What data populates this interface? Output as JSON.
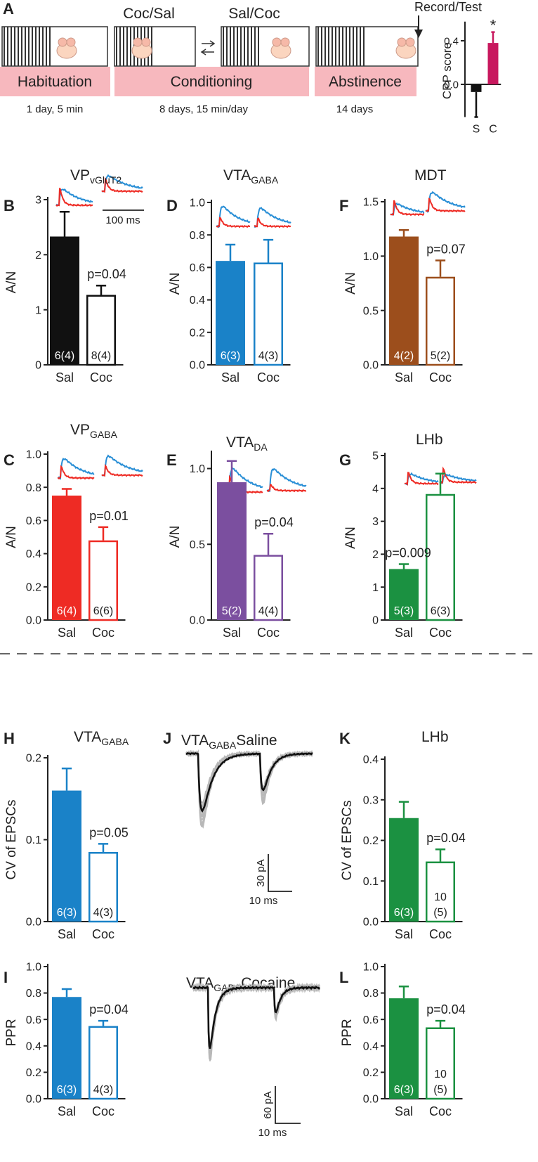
{
  "schematic": {
    "letter": "A",
    "phases": [
      "Habituation",
      "Conditioning",
      "Abstinence"
    ],
    "durations": [
      "1 day, 5 min",
      "8 days, 15 min/day",
      "14 days"
    ],
    "pairings": [
      "Coc/Sal",
      "Sal/Coc"
    ],
    "record": "Record/Test"
  },
  "traces_panel": {
    "letter": "J",
    "saline_title": [
      "VTA",
      "GABA",
      "Saline"
    ],
    "cocaine_title": [
      "VTA",
      "GABA",
      "Cocaine"
    ],
    "saline_scale": [
      "30 pA",
      "10 ms"
    ],
    "cocaine_scale": [
      "60 pA",
      "10 ms"
    ],
    "inset_scale": "100 ms"
  },
  "chart_data": [
    {
      "type": "bar",
      "ylabel": "CPP score",
      "categories": [
        "S",
        "C"
      ],
      "values": [
        -0.07,
        0.38
      ],
      "errors": [
        0.23,
        0.1
      ],
      "colors": [
        "#111111",
        "#c8185e"
      ],
      "open": [
        false,
        false
      ],
      "annotation": "*",
      "ylim": [
        -0.3,
        0.55
      ],
      "yticks": [
        {
          "value": 0,
          "label": "0.0"
        },
        0.4
      ]
    },
    {
      "type": "bar",
      "panel": "B",
      "title": "VP",
      "title_sub": "vGluT2",
      "ylabel": "A/N",
      "categories": [
        "Sal",
        "Coc"
      ],
      "values": [
        2.33,
        1.27
      ],
      "errors": [
        0.45,
        0.17
      ],
      "colors": [
        "#111111",
        "#111111"
      ],
      "open": [
        false,
        true
      ],
      "n_labels": [
        [
          "6(4)"
        ],
        [
          "8(4)"
        ]
      ],
      "p_label": "p=0.04",
      "ylim": [
        0,
        3
      ],
      "yticks": [
        0,
        1,
        2,
        3
      ]
    },
    {
      "type": "bar",
      "panel": "D",
      "title": "VTA",
      "title_sub": "GABA",
      "ylabel": "A/N",
      "categories": [
        "Sal",
        "Coc"
      ],
      "values": [
        0.64,
        0.63
      ],
      "errors": [
        0.1,
        0.14
      ],
      "colors": [
        "#1a82c8",
        "#1a82c8"
      ],
      "open": [
        false,
        true
      ],
      "n_labels": [
        [
          "6(3)"
        ],
        [
          "4(3)"
        ]
      ],
      "ylim": [
        0,
        1.0
      ],
      "yticks": [
        {
          "value": 0,
          "label": "0.0"
        },
        0.2,
        0.4,
        0.6,
        0.8,
        {
          "value": 1,
          "label": "1.0"
        }
      ]
    },
    {
      "type": "bar",
      "panel": "F",
      "title": "MDT",
      "ylabel": "A/N",
      "categories": [
        "Sal",
        "Coc"
      ],
      "values": [
        1.18,
        0.81
      ],
      "errors": [
        0.06,
        0.15
      ],
      "colors": [
        "#9c4e1c",
        "#9c4e1c"
      ],
      "open": [
        false,
        true
      ],
      "n_labels": [
        [
          "4(2)"
        ],
        [
          "5(2)"
        ]
      ],
      "p_label": "p=0.07",
      "ylim": [
        0,
        1.5
      ],
      "yticks": [
        {
          "value": 0,
          "label": "0.0"
        },
        0.5,
        {
          "value": 1,
          "label": "1.0"
        },
        1.5
      ]
    },
    {
      "type": "bar",
      "panel": "C",
      "title": "VP",
      "title_sub": "GABA",
      "ylabel": "A/N",
      "categories": [
        "Sal",
        "Coc"
      ],
      "values": [
        0.75,
        0.48
      ],
      "errors": [
        0.04,
        0.08
      ],
      "colors": [
        "#ee2b24",
        "#ee2b24"
      ],
      "open": [
        false,
        true
      ],
      "n_labels": [
        [
          "6(4)"
        ],
        [
          "6(6)"
        ]
      ],
      "p_label": "p=0.01",
      "ylim": [
        0,
        1.0
      ],
      "yticks": [
        {
          "value": 0,
          "label": "0.0"
        },
        0.2,
        0.4,
        0.6,
        0.8,
        {
          "value": 1,
          "label": "1.0"
        }
      ]
    },
    {
      "type": "bar",
      "panel": "E",
      "title": "VTA",
      "title_sub": "DA",
      "ylabel": "A/N",
      "categories": [
        "Sal",
        "Coc"
      ],
      "values": [
        0.91,
        0.43
      ],
      "errors": [
        0.14,
        0.14
      ],
      "colors": [
        "#7b4f9f",
        "#7b4f9f"
      ],
      "open": [
        false,
        true
      ],
      "n_labels": [
        [
          "5(2)"
        ],
        [
          "4(4)"
        ]
      ],
      "p_label": "p=0.04",
      "ylim": [
        0,
        1.1
      ],
      "yticks": [
        {
          "value": 0,
          "label": "0.0"
        },
        0.5,
        {
          "value": 1,
          "label": "1.0"
        }
      ]
    },
    {
      "type": "bar",
      "panel": "G",
      "title": "LHb",
      "ylabel": "A/N",
      "categories": [
        "Sal",
        "Coc"
      ],
      "values": [
        1.55,
        3.83
      ],
      "errors": [
        0.15,
        0.62
      ],
      "colors": [
        "#1b9141",
        "#1b9141"
      ],
      "open": [
        false,
        true
      ],
      "n_labels": [
        [
          "5(3)"
        ],
        [
          "6(3)"
        ]
      ],
      "p_label": "p=0.009",
      "ylim": [
        0,
        5
      ],
      "yticks": [
        0,
        1,
        2,
        3,
        4,
        5
      ]
    },
    {
      "type": "bar",
      "panel": "H",
      "title": "VTA",
      "title_sub": "GABA",
      "ylabel": "CV of EPSCs",
      "categories": [
        "Sal",
        "Coc"
      ],
      "values": [
        0.16,
        0.085
      ],
      "errors": [
        0.027,
        0.01
      ],
      "colors": [
        "#1a82c8",
        "#1a82c8"
      ],
      "open": [
        false,
        true
      ],
      "n_labels": [
        [
          "6(3)"
        ],
        [
          "4(3)"
        ]
      ],
      "p_label": "p=0.05",
      "ylim": [
        0,
        0.2
      ],
      "yticks": [
        {
          "value": 0,
          "label": "0.0"
        },
        0.1,
        0.2
      ]
    },
    {
      "type": "bar",
      "panel": "I",
      "ylabel": "PPR",
      "categories": [
        "Sal",
        "Coc"
      ],
      "values": [
        0.77,
        0.55
      ],
      "errors": [
        0.06,
        0.04
      ],
      "colors": [
        "#1a82c8",
        "#1a82c8"
      ],
      "open": [
        false,
        true
      ],
      "n_labels": [
        [
          "6(3)"
        ],
        [
          "4(3)"
        ]
      ],
      "p_label": "p=0.04",
      "ylim": [
        0,
        1.0
      ],
      "yticks": [
        {
          "value": 0,
          "label": "0.0"
        },
        0.2,
        0.4,
        0.6,
        0.8,
        {
          "value": 1,
          "label": "1.0"
        }
      ]
    },
    {
      "type": "bar",
      "panel": "K",
      "title": "LHb",
      "ylabel": "CV of EPSCs",
      "categories": [
        "Sal",
        "Coc"
      ],
      "values": [
        0.255,
        0.148
      ],
      "errors": [
        0.04,
        0.03
      ],
      "colors": [
        "#1b9141",
        "#1b9141"
      ],
      "open": [
        false,
        true
      ],
      "n_labels": [
        [
          "6(3)"
        ],
        [
          "10",
          "(5)"
        ]
      ],
      "p_label": "p=0.04",
      "ylim": [
        0,
        0.4
      ],
      "yticks": [
        {
          "value": 0,
          "label": "0.0"
        },
        0.1,
        0.2,
        0.3,
        0.4
      ]
    },
    {
      "type": "bar",
      "panel": "L",
      "ylabel": "PPR",
      "categories": [
        "Sal",
        "Coc"
      ],
      "values": [
        0.76,
        0.54
      ],
      "errors": [
        0.09,
        0.05
      ],
      "colors": [
        "#1b9141",
        "#1b9141"
      ],
      "open": [
        false,
        true
      ],
      "n_labels": [
        [
          "6(3)"
        ],
        [
          "10",
          "(5)"
        ]
      ],
      "p_label": "p=0.04",
      "ylim": [
        0,
        1.0
      ],
      "yticks": [
        {
          "value": 0,
          "label": "0.0"
        },
        0.2,
        0.4,
        0.6,
        0.8,
        {
          "value": 1,
          "label": "1.0"
        }
      ]
    }
  ]
}
